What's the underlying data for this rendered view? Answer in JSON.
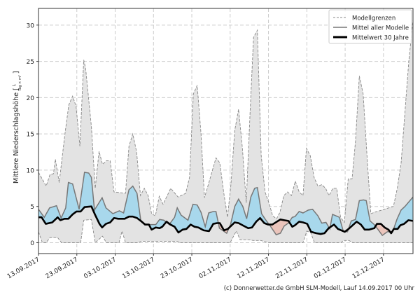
{
  "chart_data": {
    "type": "area",
    "title": "",
    "xlabel": "",
    "ylabel": "Mittlere Niederschlagshöhe [",
    "ylabel_unit_numerator": "L",
    "ylabel_unit_denominator": "Tag × m²",
    "ylabel_close": "]",
    "xlim": [
      0,
      97.7
    ],
    "ylim": [
      -1.5,
      32.3
    ],
    "grid": true,
    "legend_position": "top-right",
    "x_unit": "days since 13.09.2017",
    "x_ticks": [
      0,
      10,
      20,
      30,
      40,
      50,
      60,
      70,
      80,
      90
    ],
    "x_tick_labels": [
      "13.09.2017",
      "23.09.2017",
      "03.10.2017",
      "13.10.2017",
      "23.10.2017",
      "02.11.2017",
      "12.11.2017",
      "22.11.2017",
      "02.12.2017",
      "12.12.2017"
    ],
    "y_ticks": [
      0,
      5,
      10,
      15,
      20,
      25,
      30
    ],
    "y_tick_labels": [
      "0",
      "5",
      "10",
      "15",
      "20",
      "25",
      "30"
    ],
    "legend": [
      "Modellgrenzen",
      "Mittel aller Modelle",
      "Mittelwert 30 Jahre"
    ],
    "colors": {
      "band": "#e3e3e3",
      "bound": "#888888",
      "mean": "#777777",
      "climate": "#000000",
      "above": "#a8d8ec",
      "below": "#ebc4bb"
    },
    "series": [
      {
        "name": "Modellgrenzen (max)",
        "points": [
          [
            0,
            9.7
          ],
          [
            2,
            7.8
          ],
          [
            3,
            9.4
          ],
          [
            3.9,
            9.5
          ],
          [
            4.4,
            11.5
          ],
          [
            5.4,
            8.3
          ],
          [
            6.9,
            15
          ],
          [
            7.9,
            19
          ],
          [
            8.9,
            20.2
          ],
          [
            9.8,
            18.8
          ],
          [
            10.8,
            13.3
          ],
          [
            11.8,
            25.2
          ],
          [
            12.3,
            24
          ],
          [
            13.8,
            16
          ],
          [
            14.8,
            7.5
          ],
          [
            15.8,
            12.6
          ],
          [
            16.7,
            10.8
          ],
          [
            17.7,
            11.3
          ],
          [
            18.7,
            11.3
          ],
          [
            19.7,
            7
          ],
          [
            22.7,
            6.8
          ],
          [
            23.6,
            13.3
          ],
          [
            24.6,
            15
          ],
          [
            25.6,
            12.5
          ],
          [
            26.6,
            6.5
          ],
          [
            27.6,
            7.5
          ],
          [
            28.6,
            6.5
          ],
          [
            29.5,
            4
          ],
          [
            30.5,
            3.7
          ],
          [
            31.5,
            6.4
          ],
          [
            32.5,
            5.3
          ],
          [
            34.5,
            7.5
          ],
          [
            36.4,
            6.3
          ],
          [
            38.4,
            6.8
          ],
          [
            39.4,
            9
          ],
          [
            40.4,
            20.5
          ],
          [
            41.4,
            21.7
          ],
          [
            42.4,
            15
          ],
          [
            43.3,
            6.2
          ],
          [
            44.3,
            8
          ],
          [
            46.3,
            11.7
          ],
          [
            47.3,
            11
          ],
          [
            48.3,
            7
          ],
          [
            49.3,
            3.5
          ],
          [
            50.2,
            8
          ],
          [
            51.2,
            15.5
          ],
          [
            52.2,
            18.4
          ],
          [
            53.2,
            13
          ],
          [
            54.2,
            5.5
          ],
          [
            55.2,
            18
          ],
          [
            56.1,
            28.3
          ],
          [
            57.1,
            29.3
          ],
          [
            58.1,
            12
          ],
          [
            59.1,
            7
          ],
          [
            60.1,
            5.5
          ],
          [
            61.1,
            3.7
          ],
          [
            62.1,
            3.3
          ],
          [
            63,
            4.2
          ],
          [
            64,
            6.5
          ],
          [
            65,
            7
          ],
          [
            66,
            6.5
          ],
          [
            67,
            8.5
          ],
          [
            68,
            7
          ],
          [
            69,
            6.5
          ],
          [
            69.9,
            13
          ],
          [
            70.9,
            12
          ],
          [
            71.9,
            9
          ],
          [
            72.9,
            7.8
          ],
          [
            73.9,
            8
          ],
          [
            74.9,
            7.5
          ],
          [
            75.8,
            6.5
          ],
          [
            76.8,
            7.5
          ],
          [
            77.8,
            7.5
          ],
          [
            78.8,
            3.5
          ],
          [
            79.8,
            2.8
          ],
          [
            80.8,
            8.8
          ],
          [
            81.8,
            8.8
          ],
          [
            82.7,
            14
          ],
          [
            83.7,
            23
          ],
          [
            84.7,
            20.5
          ],
          [
            85.7,
            12
          ],
          [
            86.7,
            4
          ],
          [
            87.7,
            4.2
          ],
          [
            89.6,
            4.5
          ],
          [
            92.6,
            5
          ],
          [
            93.6,
            7.5
          ],
          [
            94.6,
            11
          ],
          [
            95.6,
            18
          ],
          [
            96.6,
            25
          ],
          [
            97.7,
            30.7
          ]
        ]
      },
      {
        "name": "Modellgrenzen (min)",
        "points": [
          [
            0,
            1.5
          ],
          [
            1,
            0
          ],
          [
            2,
            0
          ],
          [
            3,
            0.7
          ],
          [
            5,
            0.7
          ],
          [
            6,
            0
          ],
          [
            11,
            0
          ],
          [
            11.8,
            3.1
          ],
          [
            13.8,
            3.2
          ],
          [
            14.8,
            0
          ],
          [
            16.7,
            0.9
          ],
          [
            17.7,
            0
          ],
          [
            21,
            0
          ],
          [
            21.8,
            1.6
          ],
          [
            22.7,
            0
          ],
          [
            26,
            0
          ],
          [
            26.8,
            0.2
          ],
          [
            36,
            0.2
          ],
          [
            37,
            0
          ],
          [
            50,
            0
          ],
          [
            51.6,
            1.6
          ],
          [
            52.6,
            0.4
          ],
          [
            55,
            0.4
          ],
          [
            56,
            0.3
          ],
          [
            58,
            0.3
          ],
          [
            60,
            0
          ],
          [
            69,
            0
          ],
          [
            70,
            1.6
          ],
          [
            71,
            1.4
          ],
          [
            72,
            0
          ],
          [
            79,
            0
          ],
          [
            79.5,
            0.3
          ],
          [
            81,
            0.3
          ],
          [
            82,
            0
          ],
          [
            97.7,
            0
          ]
        ]
      },
      {
        "name": "Mittel aller Modelle",
        "points": [
          [
            0,
            4.6
          ],
          [
            1.5,
            3.5
          ],
          [
            2.9,
            4.8
          ],
          [
            4.7,
            5.1
          ],
          [
            5.9,
            3.4
          ],
          [
            7.1,
            4.8
          ],
          [
            7.8,
            8.3
          ],
          [
            8.9,
            8.1
          ],
          [
            10.6,
            4.6
          ],
          [
            12,
            9.7
          ],
          [
            13.1,
            9.6
          ],
          [
            13.8,
            9
          ],
          [
            14.6,
            4.5
          ],
          [
            16.6,
            6.2
          ],
          [
            17.6,
            4.8
          ],
          [
            19.4,
            4
          ],
          [
            21.1,
            4.4
          ],
          [
            22.2,
            4.1
          ],
          [
            23.6,
            7.3
          ],
          [
            24.6,
            7.8
          ],
          [
            25.7,
            6.8
          ],
          [
            26.7,
            3
          ],
          [
            28.1,
            2.5
          ],
          [
            30.6,
            2.5
          ],
          [
            31.6,
            3.2
          ],
          [
            32.7,
            3.1
          ],
          [
            34.1,
            2.5
          ],
          [
            35.5,
            3.5
          ],
          [
            36.2,
            4.8
          ],
          [
            37.2,
            3.8
          ],
          [
            39,
            3.1
          ],
          [
            40.3,
            5.3
          ],
          [
            41.4,
            5.2
          ],
          [
            42.4,
            4.2
          ],
          [
            43.5,
            2.2
          ],
          [
            44.4,
            4.1
          ],
          [
            45.6,
            4.3
          ],
          [
            46.3,
            4.3
          ],
          [
            47.2,
            2
          ],
          [
            49.1,
            1.3
          ],
          [
            50.1,
            2.5
          ],
          [
            51.2,
            5
          ],
          [
            52.2,
            6
          ],
          [
            53.3,
            5
          ],
          [
            54.3,
            3.3
          ],
          [
            55.4,
            6.3
          ],
          [
            56.4,
            7.5
          ],
          [
            57.1,
            7.6
          ],
          [
            58.2,
            4
          ],
          [
            59.2,
            3.2
          ],
          [
            60.6,
            2.2
          ],
          [
            62,
            1.1
          ],
          [
            63.1,
            1.3
          ],
          [
            64.1,
            2.3
          ],
          [
            65.2,
            2.7
          ],
          [
            66.2,
            3.5
          ],
          [
            66.9,
            3.6
          ],
          [
            68,
            4.3
          ],
          [
            69,
            4.1
          ],
          [
            70.4,
            4.5
          ],
          [
            71.5,
            4.6
          ],
          [
            72.9,
            3.7
          ],
          [
            73.9,
            2.7
          ],
          [
            75,
            2.8
          ],
          [
            76,
            1.9
          ],
          [
            76.7,
            3.9
          ],
          [
            78.5,
            3.5
          ],
          [
            79.5,
            1.6
          ],
          [
            80.6,
            1.5
          ],
          [
            81.6,
            3
          ],
          [
            82.7,
            3.2
          ],
          [
            83.7,
            5.8
          ],
          [
            84.8,
            5.9
          ],
          [
            85.5,
            5.8
          ],
          [
            86.5,
            3
          ],
          [
            87.6,
            2.5
          ],
          [
            88.6,
            1.8
          ],
          [
            89.7,
            1
          ],
          [
            91,
            1.5
          ],
          [
            92.4,
            1.5
          ],
          [
            93.5,
            3.2
          ],
          [
            94.6,
            4.5
          ],
          [
            95.6,
            5
          ],
          [
            97.7,
            6.3
          ]
        ]
      },
      {
        "name": "Mittelwert 30 Jahre",
        "points": [
          [
            0,
            3.5
          ],
          [
            0.8,
            3.5
          ],
          [
            1.9,
            2.6
          ],
          [
            3.6,
            2.8
          ],
          [
            5,
            3.5
          ],
          [
            5.7,
            3.1
          ],
          [
            6.8,
            3.3
          ],
          [
            7.8,
            3.3
          ],
          [
            8.9,
            3.9
          ],
          [
            9.9,
            4.3
          ],
          [
            11,
            4.3
          ],
          [
            12,
            4.9
          ],
          [
            13.8,
            5
          ],
          [
            14.8,
            3.8
          ],
          [
            15.9,
            2.6
          ],
          [
            16.6,
            2.1
          ],
          [
            17.6,
            2.6
          ],
          [
            18.7,
            2.8
          ],
          [
            19.7,
            3.4
          ],
          [
            20.8,
            3.3
          ],
          [
            22.5,
            3.3
          ],
          [
            23.6,
            3.6
          ],
          [
            24.6,
            3.6
          ],
          [
            25.7,
            3.4
          ],
          [
            26.7,
            3
          ],
          [
            27.8,
            2.5
          ],
          [
            28.8,
            2.5
          ],
          [
            29.5,
            1.8
          ],
          [
            30.6,
            2.1
          ],
          [
            31.6,
            2
          ],
          [
            32.3,
            2.2
          ],
          [
            33.4,
            2.9
          ],
          [
            34.4,
            2.5
          ],
          [
            35.5,
            2.2
          ],
          [
            36.5,
            1.4
          ],
          [
            37.6,
            1.8
          ],
          [
            38.6,
            1.9
          ],
          [
            39.7,
            2.5
          ],
          [
            40.7,
            2.2
          ],
          [
            41.7,
            2.1
          ],
          [
            43.1,
            1.7
          ],
          [
            44.5,
            1.6
          ],
          [
            45.6,
            2.6
          ],
          [
            46.6,
            2.7
          ],
          [
            47.3,
            2.7
          ],
          [
            48.4,
            1.7
          ],
          [
            49.4,
            1.9
          ],
          [
            51.2,
            2.8
          ],
          [
            52.2,
            2.7
          ],
          [
            53.6,
            2.3
          ],
          [
            54.7,
            2
          ],
          [
            55.7,
            2.1
          ],
          [
            56.8,
            2.9
          ],
          [
            57.8,
            3.4
          ],
          [
            58.9,
            2.7
          ],
          [
            59.9,
            2.5
          ],
          [
            61,
            2.5
          ],
          [
            63.1,
            3.2
          ],
          [
            64.1,
            3.1
          ],
          [
            65.2,
            3
          ],
          [
            66.2,
            2.2
          ],
          [
            66.9,
            2.4
          ],
          [
            68,
            2.9
          ],
          [
            69,
            2.8
          ],
          [
            70.1,
            2.6
          ],
          [
            71.1,
            1.5
          ],
          [
            72.5,
            1.3
          ],
          [
            73.6,
            1.2
          ],
          [
            74.6,
            1.3
          ],
          [
            75.7,
            2
          ],
          [
            77.1,
            2.5
          ],
          [
            78.1,
            1.9
          ],
          [
            79.9,
            1.5
          ],
          [
            80.9,
            1.9
          ],
          [
            83,
            2.9
          ],
          [
            84.1,
            2.5
          ],
          [
            85.1,
            1.8
          ],
          [
            86.2,
            1.8
          ],
          [
            87.6,
            2
          ],
          [
            88.3,
            2.6
          ],
          [
            89.3,
            2.6
          ],
          [
            90.3,
            2.1
          ],
          [
            91.3,
            1.8
          ],
          [
            92,
            1.3
          ],
          [
            92.7,
            1.9
          ],
          [
            93.7,
            1.9
          ],
          [
            94.4,
            2.4
          ],
          [
            95.4,
            2.6
          ],
          [
            96.5,
            3.1
          ],
          [
            97.7,
            3
          ]
        ]
      }
    ]
  },
  "footer": {
    "credit": "(c) Donnerwetter.de GmbH SLM-Modell, Lauf 14.09.2017 00 Uhr"
  }
}
